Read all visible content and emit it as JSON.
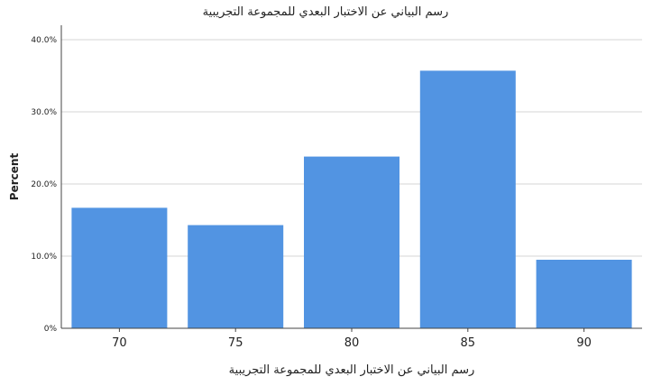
{
  "chart_data": {
    "type": "bar",
    "title": "رسم البياني عن الاختبار البعدي للمجموعة التجريبية",
    "xlabel": "رسم البياني عن الاختبار البعدي للمجموعة التجريبية",
    "ylabel": "Percent",
    "categories": [
      "70",
      "75",
      "80",
      "85",
      "90"
    ],
    "values": [
      16.7,
      14.3,
      23.8,
      35.7,
      9.5
    ],
    "ylim": [
      0,
      40
    ],
    "yticks": [
      "0%",
      "10.0%",
      "20.0%",
      "30.0%",
      "40.0%"
    ],
    "grid": true,
    "bar_color": "#5294e2"
  }
}
